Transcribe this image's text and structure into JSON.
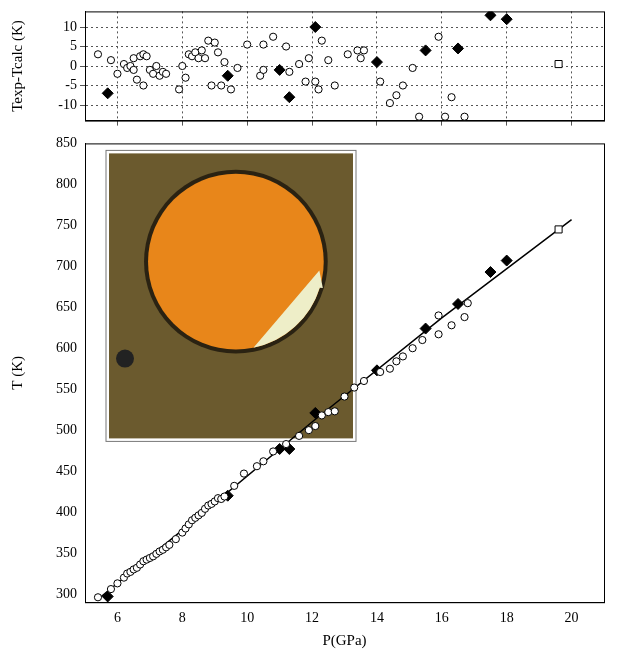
{
  "chart_data": [
    {
      "type": "scatter",
      "ylabel": "Texp-Tcalc (K)",
      "xlim": [
        5,
        21
      ],
      "ylim": [
        -14,
        14
      ],
      "xticks": [
        6,
        8,
        10,
        12,
        14,
        16,
        18,
        20
      ],
      "yticks": [
        -10,
        -5,
        0,
        5,
        10
      ],
      "grid": true,
      "tick_labels": "y",
      "series": [
        {
          "type": "scatter",
          "marker": "open_circle",
          "color": "#000000",
          "x": [
            5.4,
            5.8,
            6.0,
            6.2,
            6.3,
            6.4,
            6.5,
            6.5,
            6.6,
            6.7,
            6.8,
            6.8,
            6.9,
            7.0,
            7.1,
            7.2,
            7.3,
            7.4,
            7.5,
            7.9,
            8.0,
            8.1,
            8.2,
            8.3,
            8.4,
            8.5,
            8.6,
            8.7,
            8.8,
            8.9,
            9.0,
            9.1,
            9.2,
            9.3,
            9.5,
            9.7,
            10.0,
            10.4,
            10.5,
            10.5,
            10.8,
            11.2,
            11.3,
            11.6,
            11.8,
            11.9,
            12.1,
            12.2,
            12.3,
            12.5,
            12.7,
            13.1,
            13.4,
            13.5,
            13.6,
            14.1,
            14.4,
            14.6,
            14.8,
            15.1,
            15.3,
            15.9,
            16.1,
            16.3,
            16.7
          ],
          "values": [
            3,
            1.5,
            -2,
            0.5,
            -0.5,
            0,
            -1,
            2,
            -3.5,
            2.5,
            3,
            -5,
            2.5,
            -1,
            -2,
            0,
            -2.5,
            -1.5,
            -2,
            -6,
            0,
            -3,
            3,
            2.5,
            3.5,
            2,
            4,
            2,
            6.5,
            -5,
            6,
            3.5,
            -5,
            1,
            -6,
            -0.5,
            5.5,
            -2.5,
            5.5,
            -1,
            7.5,
            5,
            -1.5,
            0.5,
            -4,
            2,
            -4,
            -6,
            6.5,
            1.5,
            -5,
            3,
            4,
            2,
            4,
            -4,
            -9.5,
            -7.5,
            -5,
            -0.5,
            -13,
            7.5,
            -13,
            -8,
            -13
          ]
        },
        {
          "type": "scatter",
          "marker": "diamond",
          "color": "#000000",
          "x": [
            5.7,
            9.4,
            11.0,
            11.3,
            12.1,
            14.0,
            15.5,
            16.5,
            17.5,
            18.0
          ],
          "values": [
            -7,
            -2.5,
            -1,
            -8,
            10,
            1,
            4,
            4.5,
            13,
            12
          ]
        },
        {
          "type": "scatter",
          "marker": "open_square",
          "color": "#000000",
          "x": [
            19.6
          ],
          "values": [
            0.5
          ]
        }
      ]
    },
    {
      "type": "scatter",
      "xlabel": "P(GPa)",
      "ylabel": "T (K)",
      "xlim": [
        5,
        21
      ],
      "ylim": [
        290,
        850
      ],
      "xticks": [
        6,
        8,
        10,
        12,
        14,
        16,
        18,
        20
      ],
      "yticks": [
        300,
        350,
        400,
        450,
        500,
        550,
        600,
        650,
        700,
        750,
        800,
        850
      ],
      "grid": false,
      "tick_labels": true,
      "series": [
        {
          "type": "line",
          "marker": "none",
          "line_style": "solid",
          "color": "#000000",
          "x": [
            5.5,
            8,
            12,
            16,
            20
          ],
          "values": [
            297,
            378,
            510,
            637,
            757
          ]
        },
        {
          "type": "scatter",
          "marker": "open_circle",
          "color": "#000000",
          "x": [
            5.4,
            5.8,
            6.0,
            6.2,
            6.3,
            6.4,
            6.5,
            6.6,
            6.7,
            6.8,
            6.9,
            7.0,
            7.1,
            7.2,
            7.3,
            7.4,
            7.5,
            7.6,
            7.8,
            8.0,
            8.1,
            8.2,
            8.3,
            8.4,
            8.5,
            8.6,
            8.7,
            8.8,
            8.9,
            9.0,
            9.1,
            9.2,
            9.3,
            9.6,
            9.9,
            10.3,
            10.5,
            10.8,
            11.2,
            11.6,
            11.9,
            12.1,
            12.3,
            12.5,
            12.7,
            13.0,
            13.3,
            13.6,
            14.1,
            14.4,
            14.6,
            14.8,
            15.1,
            15.4,
            15.9,
            15.9,
            16.3,
            16.7,
            16.8
          ],
          "values": [
            296,
            306,
            313,
            320,
            325,
            327,
            330,
            332,
            336,
            340,
            342,
            344,
            346,
            349,
            352,
            354,
            357,
            360,
            367,
            375,
            380,
            385,
            390,
            393,
            396,
            399,
            404,
            408,
            410,
            413,
            417,
            416,
            419,
            432,
            447,
            456,
            462,
            474,
            483,
            493,
            500,
            505,
            518,
            522,
            523,
            541,
            552,
            560,
            571,
            575,
            584,
            590,
            600,
            610,
            617,
            640,
            628,
            638,
            655
          ]
        },
        {
          "type": "scatter",
          "marker": "diamond",
          "color": "#000000",
          "x": [
            5.7,
            9.4,
            11.0,
            11.3,
            12.1,
            14.0,
            15.5,
            16.5,
            17.5,
            18.0
          ],
          "values": [
            297,
            420,
            477,
            477,
            521,
            573,
            624,
            654,
            693,
            707
          ]
        },
        {
          "type": "scatter",
          "marker": "open_square",
          "color": "#000000",
          "x": [
            19.6
          ],
          "values": [
            745
          ]
        }
      ]
    }
  ]
}
